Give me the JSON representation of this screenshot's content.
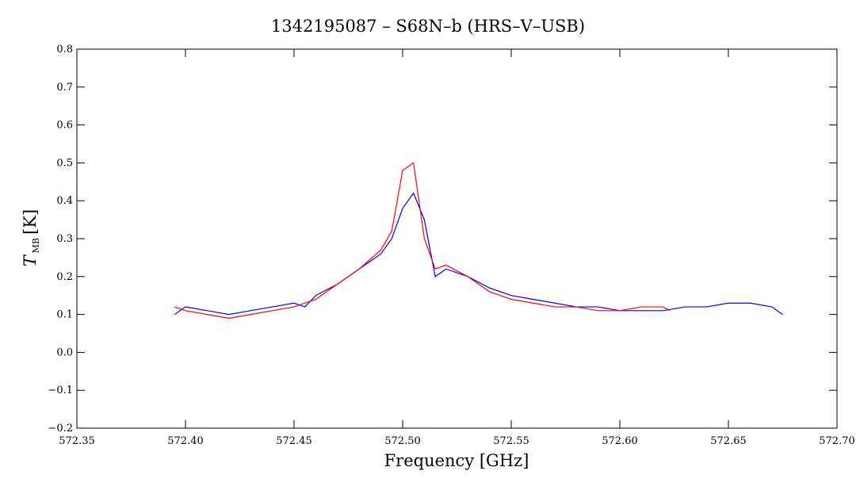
{
  "chart_data": {
    "type": "line",
    "title": "1342195087 – S68N–b (HRS–V–USB)",
    "xlabel": "Frequency [GHz]",
    "ylabel_main": "T",
    "ylabel_sub": "MB",
    "ylabel_unit": "[K]",
    "xlim": [
      572.35,
      572.7
    ],
    "ylim": [
      -0.2,
      0.8
    ],
    "xticks": [
      "572.35",
      "572.40",
      "572.45",
      "572.50",
      "572.55",
      "572.60",
      "572.65",
      "572.70"
    ],
    "yticks": [
      "−0.2",
      "−0.1",
      "0.0",
      "0.1",
      "0.2",
      "0.3",
      "0.4",
      "0.5",
      "0.6",
      "0.7",
      "0.8"
    ],
    "grid": false,
    "series": [
      {
        "color": "#0000ff",
        "x": [
          572.395,
          572.4,
          572.41,
          572.42,
          572.43,
          572.44,
          572.45,
          572.455,
          572.46,
          572.47,
          572.48,
          572.49,
          572.495,
          572.5,
          572.505,
          572.51,
          572.515,
          572.52,
          572.53,
          572.54,
          572.55,
          572.56,
          572.57,
          572.58,
          572.59,
          572.6,
          572.61,
          572.62,
          572.63,
          572.64,
          572.65,
          572.66,
          572.67,
          572.675
        ],
        "y": [
          0.1,
          0.12,
          0.11,
          0.1,
          0.11,
          0.12,
          0.13,
          0.12,
          0.15,
          0.18,
          0.22,
          0.26,
          0.3,
          0.38,
          0.42,
          0.35,
          0.2,
          0.22,
          0.2,
          0.17,
          0.15,
          0.14,
          0.13,
          0.12,
          0.12,
          0.11,
          0.11,
          0.11,
          0.12,
          0.12,
          0.13,
          0.13,
          0.12,
          0.1
        ]
      },
      {
        "color": "#ff0000",
        "x": [
          572.395,
          572.4,
          572.41,
          572.42,
          572.43,
          572.44,
          572.45,
          572.46,
          572.47,
          572.48,
          572.49,
          572.495,
          572.5,
          572.505,
          572.51,
          572.515,
          572.52,
          572.53,
          572.54,
          572.55,
          572.56,
          572.57,
          572.58,
          572.59,
          572.6,
          572.61,
          572.62,
          572.623
        ],
        "y": [
          0.12,
          0.11,
          0.1,
          0.09,
          0.1,
          0.11,
          0.12,
          0.14,
          0.18,
          0.22,
          0.27,
          0.32,
          0.48,
          0.5,
          0.3,
          0.22,
          0.23,
          0.2,
          0.16,
          0.14,
          0.13,
          0.12,
          0.12,
          0.11,
          0.11,
          0.12,
          0.12,
          0.11
        ]
      }
    ]
  }
}
